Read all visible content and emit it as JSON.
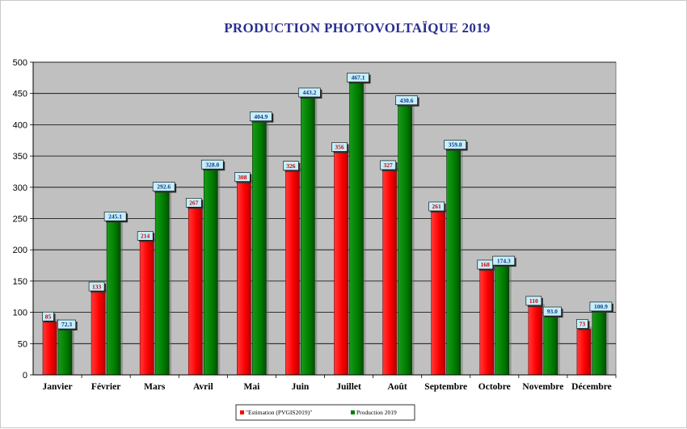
{
  "chart_data": {
    "type": "bar",
    "title": "PRODUCTION PHOTOVOLTAÏQUE 2019",
    "xlabel": "",
    "ylabel": "",
    "ylim": [
      0,
      500
    ],
    "yticks": [
      0,
      50,
      100,
      150,
      200,
      250,
      300,
      350,
      400,
      450,
      500
    ],
    "grid": true,
    "legend_position": "bottom",
    "categories": [
      "Janvier",
      "Février",
      "Mars",
      "Avril",
      "Mai",
      "Juin",
      "Juillet",
      "Août",
      "Septembre",
      "Octobre",
      "Novembre",
      "Décembre"
    ],
    "series": [
      {
        "name": "\"Estimation (PVGIS2019)\"",
        "color": "#ff0000",
        "values": [
          85,
          133,
          214,
          267,
          308,
          326,
          356,
          327,
          261,
          168,
          110,
          73
        ],
        "labels": [
          "85",
          "133",
          "214",
          "267",
          "308",
          "326",
          "356",
          "327",
          "261",
          "168",
          "110",
          "73"
        ]
      },
      {
        "name": "Production 2019",
        "color": "#008000",
        "values": [
          72.3,
          245.1,
          292.6,
          328.0,
          404.9,
          443.2,
          467.1,
          430.6,
          359.8,
          174.3,
          93.0,
          100.9
        ],
        "labels": [
          "72.3",
          "245.1",
          "292.6",
          "328.0",
          "404.9",
          "443.2",
          "467.1",
          "430.6",
          "359.8",
          "174.3",
          "93.0",
          "100.9"
        ]
      }
    ],
    "plot_background": "#c0c0c0",
    "label_box_color": "#c6effa"
  }
}
